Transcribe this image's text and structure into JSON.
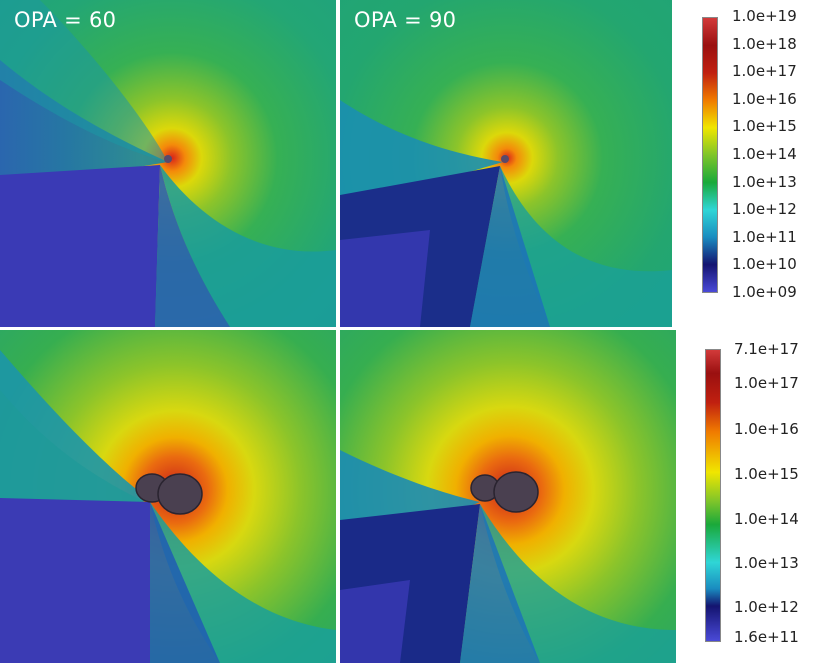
{
  "panels": {
    "top_left": {
      "label": "OPA = 60"
    },
    "top_right": {
      "label": "OPA = 90"
    }
  },
  "colorbar_top": {
    "ticks": [
      "1.0e+19",
      "1.0e+18",
      "1.0e+17",
      "1.0e+16",
      "1.0e+15",
      "1.0e+14",
      "1.0e+13",
      "1.0e+12",
      "1.0e+11",
      "1.0e+10",
      "1.0e+09"
    ]
  },
  "colorbar_bottom": {
    "ticks": [
      "7.1e+17",
      "1.0e+17",
      "1.0e+16",
      "1.0e+15",
      "1.0e+14",
      "1.0e+13",
      "1.0e+12",
      "1.6e+11"
    ]
  },
  "colormap": [
    "#3a3acf",
    "#141470",
    "#1fa2c9",
    "#2fd6d6",
    "#1aa93a",
    "#7fc72a",
    "#f4ee00",
    "#f08a00",
    "#e4470c",
    "#9a1010",
    "#d03a3a"
  ]
}
